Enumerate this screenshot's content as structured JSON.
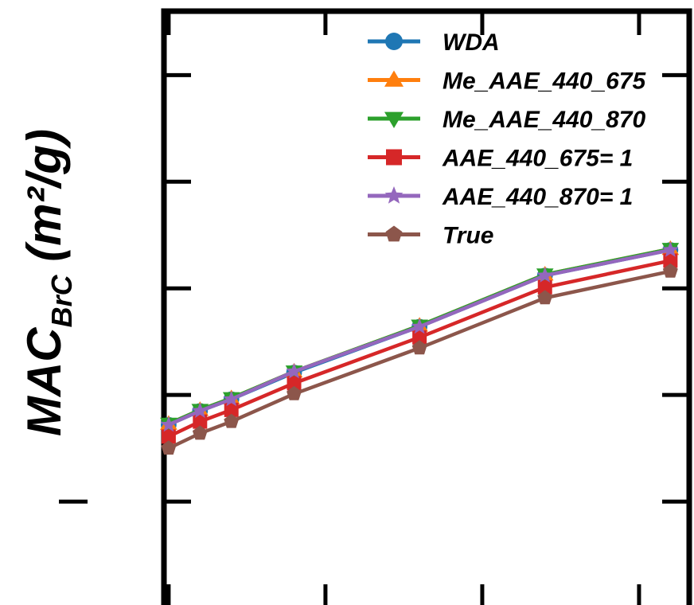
{
  "chart_data": {
    "type": "line",
    "title": "",
    "xlabel": "",
    "ylabel": {
      "main": "MAC",
      "sub": "BrC",
      "unit": " (m²/g)"
    },
    "x": [
      0,
      1,
      2,
      4,
      8,
      12,
      16
    ],
    "xlim": [
      -0.15,
      16.6
    ],
    "ylim": [
      0,
      5.6
    ],
    "grid": false,
    "legend_position": "top-right",
    "series": [
      {
        "name": "WDA",
        "color": "#1f77b4",
        "marker": "circle",
        "values": [
          1.72,
          1.85,
          1.96,
          2.21,
          2.64,
          3.12,
          3.36
        ]
      },
      {
        "name": "Me_AAE_440_675",
        "color": "#ff7f0e",
        "marker": "triangle-up",
        "values": [
          1.73,
          1.86,
          1.97,
          2.22,
          2.65,
          3.13,
          3.37
        ]
      },
      {
        "name": "Me_AAE_440_870",
        "color": "#2ca02c",
        "marker": "triangle-down",
        "values": [
          1.73,
          1.86,
          1.97,
          2.22,
          2.65,
          3.13,
          3.37
        ]
      },
      {
        "name": "AAE_440_675= 1",
        "color": "#d62728",
        "marker": "square",
        "values": [
          1.61,
          1.75,
          1.86,
          2.11,
          2.54,
          3.01,
          3.26
        ]
      },
      {
        "name": "AAE_440_870= 1",
        "color": "#9467bd",
        "marker": "star",
        "values": [
          1.72,
          1.85,
          1.96,
          2.22,
          2.64,
          3.12,
          3.36
        ]
      },
      {
        "name": "True",
        "color": "#8c564b",
        "marker": "pentagon",
        "values": [
          1.5,
          1.64,
          1.75,
          2.01,
          2.44,
          2.91,
          3.16
        ]
      }
    ]
  }
}
